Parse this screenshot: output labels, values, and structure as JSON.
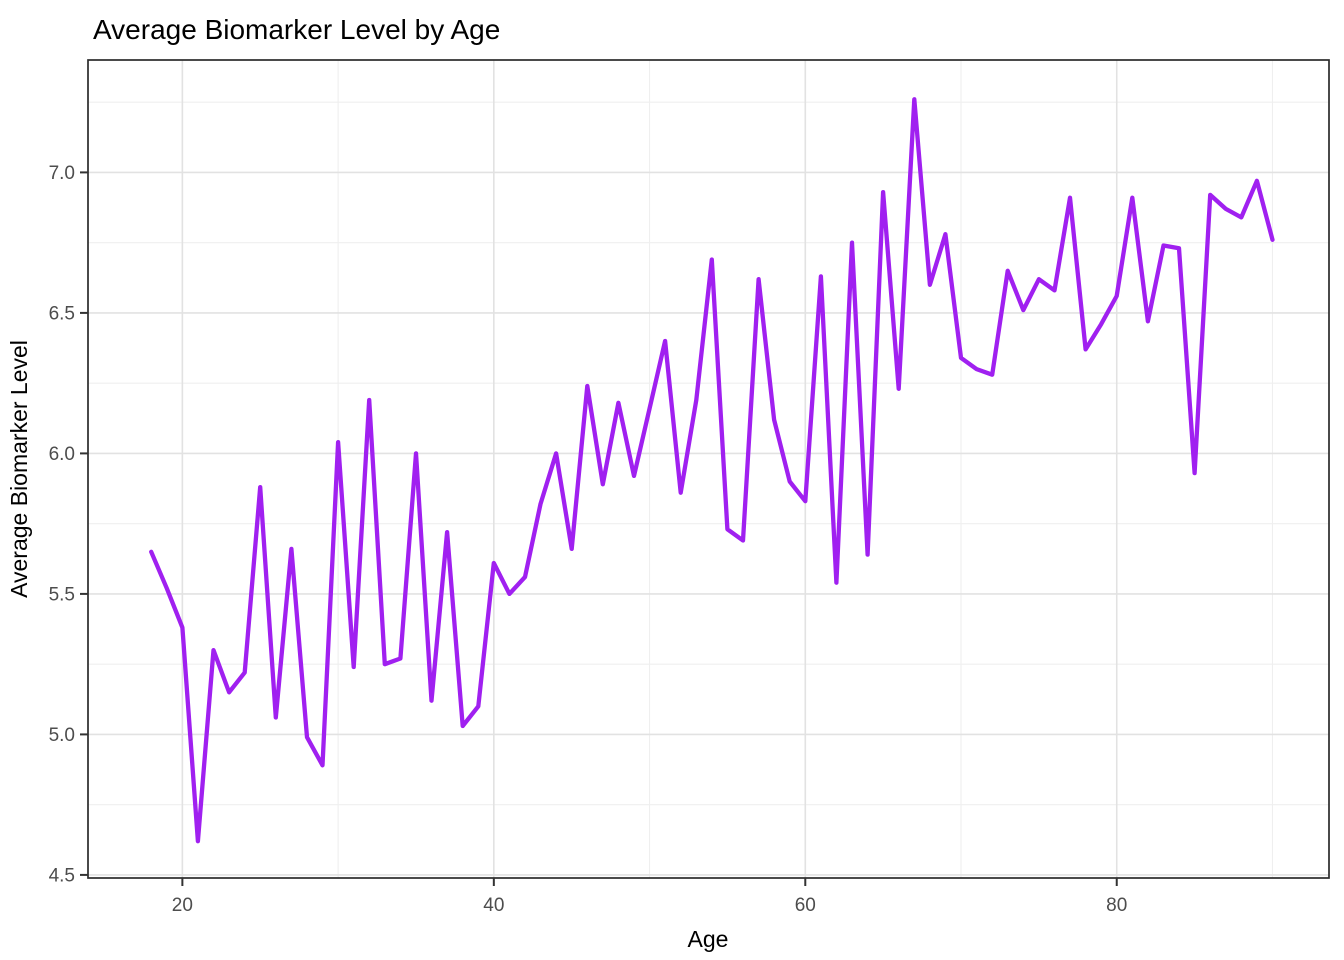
{
  "title": "Average Biomarker Level by Age",
  "chart_data": {
    "type": "line",
    "title": "Average Biomarker Level by Age",
    "xlabel": "Age",
    "ylabel": "Average Biomarker Level",
    "legend": "none",
    "grid": "major+minor",
    "line_color": "#A020F0",
    "line_width": 4.3,
    "xlim": [
      13.94,
      93.63
    ],
    "ylim": [
      4.489,
      7.4
    ],
    "x_ticks": [
      20,
      40,
      60,
      80
    ],
    "x_tick_labels": [
      "20",
      "40",
      "60",
      "80"
    ],
    "x_minor_gridlines": [
      30,
      50,
      70,
      90
    ],
    "y_ticks": [
      4.5,
      5.0,
      5.5,
      6.0,
      6.5,
      7.0
    ],
    "y_tick_labels": [
      "4.5",
      "5.0",
      "5.5",
      "6.0",
      "6.5",
      "7.0"
    ],
    "y_minor_gridlines": [
      4.75,
      5.25,
      5.75,
      6.25,
      6.75,
      7.25
    ],
    "x": [
      18,
      19,
      20,
      21,
      22,
      23,
      24,
      25,
      26,
      27,
      28,
      29,
      30,
      31,
      32,
      33,
      34,
      35,
      36,
      37,
      38,
      39,
      40,
      41,
      42,
      43,
      44,
      45,
      46,
      47,
      48,
      49,
      50,
      51,
      52,
      53,
      54,
      55,
      56,
      57,
      58,
      59,
      60,
      61,
      62,
      63,
      64,
      65,
      66,
      67,
      68,
      69,
      70,
      71,
      72,
      73,
      74,
      75,
      76,
      77,
      78,
      79,
      80,
      81,
      82,
      83,
      84,
      85,
      86,
      87,
      88,
      89,
      90
    ],
    "values": [
      5.65,
      5.52,
      5.38,
      4.62,
      5.3,
      5.15,
      5.22,
      5.88,
      5.06,
      5.66,
      4.99,
      4.89,
      6.04,
      5.24,
      6.19,
      5.25,
      5.27,
      6.0,
      5.12,
      5.72,
      5.03,
      5.1,
      5.61,
      5.5,
      5.56,
      5.82,
      6.0,
      5.66,
      6.24,
      5.89,
      6.18,
      5.92,
      6.16,
      6.4,
      5.86,
      6.19,
      6.69,
      5.73,
      5.69,
      6.62,
      6.12,
      5.9,
      5.83,
      6.63,
      5.54,
      6.75,
      5.64,
      6.93,
      6.23,
      7.26,
      6.6,
      6.78,
      6.34,
      6.3,
      6.28,
      6.65,
      6.51,
      6.62,
      6.58,
      6.91,
      6.37,
      6.46,
      6.56,
      6.91,
      6.47,
      6.74,
      6.73,
      5.93,
      6.92,
      6.87,
      6.84,
      6.97,
      6.76
    ],
    "colors": {
      "panel_border": "#2b2b2b",
      "grid_major": "#e2e2e2",
      "grid_minor": "#efefef",
      "tick_mark": "#333333",
      "tick_label": "#4d4d4d"
    }
  }
}
